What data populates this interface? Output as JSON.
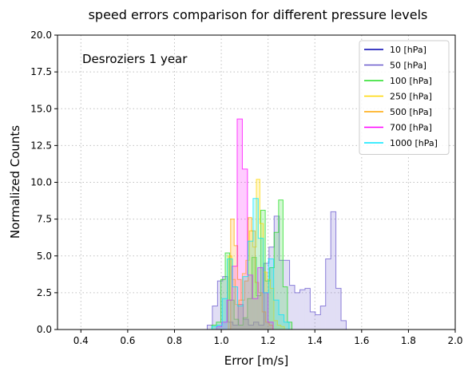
{
  "chart_data": {
    "type": "histogram",
    "title": "speed errors comparison for different pressure levels",
    "xlabel": "Error [m/s]",
    "ylabel": "Normalized Counts",
    "annotation": "Desroziers 1 year",
    "xlim": [
      0.3,
      2.0
    ],
    "ylim": [
      0,
      20
    ],
    "xticks": [
      "0.4",
      "0.6",
      "0.8",
      "1.0",
      "1.2",
      "1.4",
      "1.6",
      "1.8",
      "2.0"
    ],
    "yticks": [
      "0.0",
      "2.5",
      "5.0",
      "7.5",
      "10.0",
      "12.5",
      "15.0",
      "17.5",
      "20.0"
    ],
    "grid": true,
    "legend_position": "upper-right",
    "series": [
      {
        "name": "10 [hPa]",
        "color": "#0000b0",
        "bin_start": 0.94,
        "bin_width": 0.022,
        "values": []
      },
      {
        "name": "50 [hPa]",
        "color": "#6a5acd",
        "bin_start": 0.94,
        "bin_width": 0.022,
        "values": [
          0.3,
          1.6,
          3.3,
          3.6,
          0.5,
          0.3,
          1.7,
          0.7,
          0.3,
          0.5,
          0.3,
          4.5,
          5.6,
          7.7,
          4.7,
          4.7,
          3.0,
          2.5,
          2.7,
          2.8,
          1.2,
          1.0,
          1.6,
          4.8,
          8.0,
          2.8,
          0.6
        ]
      },
      {
        "name": "100 [hPa]",
        "color": "#22dd22",
        "bin_start": 0.96,
        "bin_width": 0.019,
        "values": [
          0.3,
          0.5,
          3.4,
          5.2,
          2.0,
          0.7,
          0.3,
          0.8,
          2.1,
          4.9,
          2.3,
          8.1,
          3.3,
          4.2,
          6.6,
          8.8,
          2.9,
          0.5
        ]
      },
      {
        "name": "250 [hPa]",
        "color": "#ffd700",
        "bin_start": 1.03,
        "bin_width": 0.015,
        "values": [
          5.0,
          3.4,
          1.7,
          2.0,
          3.8,
          4.7,
          6.7,
          5.6,
          10.2,
          7.2,
          3.9,
          3.4,
          2.8,
          0.6,
          0.3,
          0.2
        ]
      },
      {
        "name": "500 [hPa]",
        "color": "#ffa500",
        "bin_start": 1.04,
        "bin_width": 0.015,
        "values": [
          7.5,
          5.7,
          3.4,
          2.0,
          3.3,
          7.6,
          6.7,
          3.2,
          2.5,
          1.2,
          0.5,
          0.3
        ]
      },
      {
        "name": "700 [hPa]",
        "color": "#ff00ff",
        "bin_start": 0.98,
        "bin_width": 0.022,
        "values": [
          0.2,
          0.5,
          2.0,
          4.3,
          14.3,
          10.9,
          3.7,
          2.1,
          4.2,
          2.5,
          0.5
        ]
      },
      {
        "name": "1000 [hPa]",
        "color": "#00e5ff",
        "bin_start": 0.96,
        "bin_width": 0.022,
        "values": [
          0.2,
          0.3,
          2.1,
          4.8,
          2.9,
          1.6,
          3.6,
          6.0,
          8.9,
          6.2,
          2.5,
          4.8,
          2.0,
          1.0,
          0.5
        ]
      }
    ]
  }
}
